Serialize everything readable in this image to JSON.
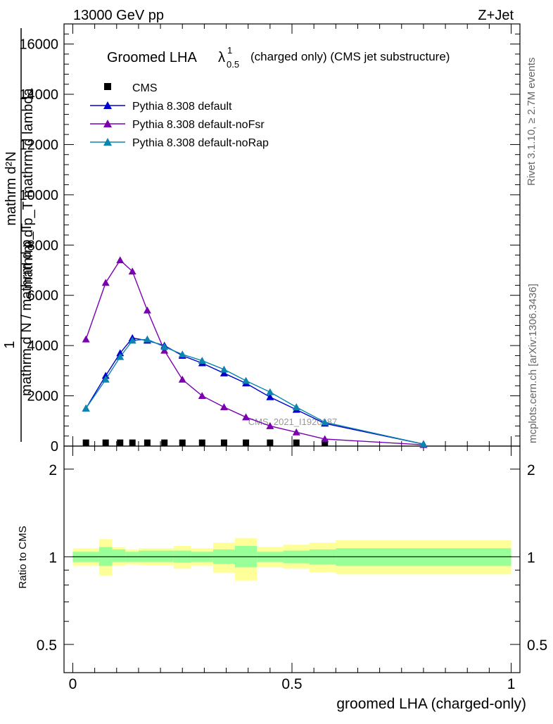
{
  "header": {
    "left": "13000 GeV pp",
    "right": "Z+Jet"
  },
  "title": {
    "main": "Groomed LHA",
    "lambda": "λ",
    "sup": "1",
    "sub": "0.5",
    "rest": "(charged only) (CMS jet substructure)"
  },
  "side_labels": {
    "rivet": "Rivet 3.1.10, ≥ 2.7M events",
    "mcplots": "mcplots.cern.ch [arXiv:1306.3436]"
  },
  "watermark": "CMS_2021_I1920187",
  "ylabel_main": {
    "line1": "mathrm d²N",
    "line2": "mathrm d p_T mathrm d lambda",
    "one": "1",
    "den": "mathrm d N / mathrm d p_T"
  },
  "ylabel_ratio": "Ratio to CMS",
  "xlabel": "groomed LHA (charged-only)",
  "legend": [
    {
      "label": "CMS",
      "color": "#000000",
      "marker": "square"
    },
    {
      "label": "Pythia 8.308 default",
      "color": "#0000cc",
      "marker": "triangle"
    },
    {
      "label": "Pythia 8.308 default-noFsr",
      "color": "#7a00b0",
      "marker": "triangle"
    },
    {
      "label": "Pythia 8.308 default-noRap",
      "color": "#0a85b0",
      "marker": "triangle"
    }
  ],
  "colors": {
    "band_inner": "#99ff99",
    "band_outer": "#ffff99"
  },
  "chart_data": {
    "type": "line",
    "title": "Groomed LHA λ^1_0.5 (charged only) (CMS jet substructure)",
    "xlabel": "groomed LHA (charged-only)",
    "xlim": [
      -0.02,
      1.02
    ],
    "main_ylim": [
      0,
      16800
    ],
    "main_yticks": [
      0,
      2000,
      4000,
      6000,
      8000,
      10000,
      12000,
      14000,
      16000
    ],
    "main_ytick_labels": [
      "0",
      "2000",
      "4000",
      "6000",
      "8000",
      "10000",
      "12000",
      "14000",
      "16000"
    ],
    "xticks": [
      0,
      0.5,
      1
    ],
    "xtick_labels": [
      "0",
      "0.5",
      "1"
    ],
    "x": [
      0.03,
      0.075,
      0.108,
      0.136,
      0.17,
      0.209,
      0.25,
      0.295,
      0.345,
      0.395,
      0.45,
      0.51,
      0.575,
      0.8
    ],
    "series": [
      {
        "name": "CMS",
        "values": [
          10,
          10,
          10,
          10,
          10,
          10,
          10,
          10,
          10,
          10,
          10,
          10,
          10,
          null
        ]
      },
      {
        "name": "Pythia 8.308 default",
        "values": [
          1500,
          2800,
          3700,
          4300,
          4200,
          4000,
          3600,
          3300,
          2900,
          2500,
          1950,
          1450,
          900,
          80
        ]
      },
      {
        "name": "Pythia 8.308 default-noFsr",
        "values": [
          4250,
          6500,
          7400,
          6950,
          5400,
          3800,
          2650,
          2000,
          1550,
          1150,
          800,
          550,
          280,
          50
        ]
      },
      {
        "name": "Pythia 8.308 default-noRap",
        "values": [
          1500,
          2650,
          3550,
          4200,
          4250,
          3950,
          3650,
          3400,
          3050,
          2600,
          2150,
          1550,
          950,
          80
        ]
      }
    ],
    "ratio": {
      "ylabel": "Ratio to CMS",
      "ylog": true,
      "ylim": [
        0.4,
        2.4
      ],
      "yticks": [
        0.5,
        1,
        2
      ],
      "ytick_labels": [
        "0.5",
        "1",
        "2"
      ],
      "bins": [
        {
          "lo": 0.0,
          "hi": 0.06,
          "inner": [
            0.96,
            1.04
          ],
          "outer": [
            0.93,
            1.07
          ]
        },
        {
          "lo": 0.06,
          "hi": 0.09,
          "inner": [
            0.93,
            1.08
          ],
          "outer": [
            0.86,
            1.15
          ]
        },
        {
          "lo": 0.09,
          "hi": 0.12,
          "inner": [
            0.96,
            1.06
          ],
          "outer": [
            0.93,
            1.08
          ]
        },
        {
          "lo": 0.12,
          "hi": 0.15,
          "inner": [
            0.96,
            1.04
          ],
          "outer": [
            0.94,
            1.06
          ]
        },
        {
          "lo": 0.15,
          "hi": 0.23,
          "inner": [
            0.96,
            1.05
          ],
          "outer": [
            0.935,
            1.07
          ]
        },
        {
          "lo": 0.23,
          "hi": 0.27,
          "inner": [
            0.955,
            1.05
          ],
          "outer": [
            0.91,
            1.09
          ]
        },
        {
          "lo": 0.27,
          "hi": 0.32,
          "inner": [
            0.96,
            1.04
          ],
          "outer": [
            0.93,
            1.07
          ]
        },
        {
          "lo": 0.32,
          "hi": 0.37,
          "inner": [
            0.945,
            1.06
          ],
          "outer": [
            0.88,
            1.12
          ]
        },
        {
          "lo": 0.37,
          "hi": 0.42,
          "inner": [
            0.92,
            1.09
          ],
          "outer": [
            0.83,
            1.16
          ]
        },
        {
          "lo": 0.42,
          "hi": 0.48,
          "inner": [
            0.96,
            1.04
          ],
          "outer": [
            0.92,
            1.08
          ]
        },
        {
          "lo": 0.48,
          "hi": 0.54,
          "inner": [
            0.95,
            1.05
          ],
          "outer": [
            0.91,
            1.1
          ]
        },
        {
          "lo": 0.54,
          "hi": 0.6,
          "inner": [
            0.94,
            1.06
          ],
          "outer": [
            0.885,
            1.12
          ]
        },
        {
          "lo": 0.6,
          "hi": 1.0,
          "inner": [
            0.93,
            1.07
          ],
          "outer": [
            0.87,
            1.14
          ]
        }
      ]
    }
  }
}
